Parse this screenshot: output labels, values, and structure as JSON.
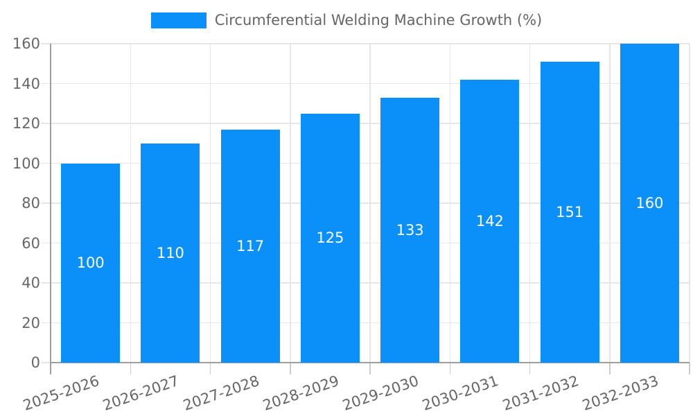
{
  "legend": {
    "label": "Circumferential Welding Machine Growth (%)"
  },
  "chart_data": {
    "type": "bar",
    "title": "",
    "xlabel": "",
    "ylabel": "",
    "categories": [
      "2025-2026",
      "2026-2027",
      "2027-2028",
      "2028-2029",
      "2029-2030",
      "2030-2031",
      "2031-2032",
      "2032-2033"
    ],
    "values": [
      100,
      110,
      117,
      125,
      133,
      142,
      151,
      160
    ],
    "series_name": "Circumferential Welding Machine Growth (%)",
    "yticks": [
      0,
      20,
      40,
      60,
      80,
      100,
      120,
      140,
      160
    ],
    "ylim": [
      0,
      160
    ],
    "grid": true,
    "legend_position": "top-center",
    "value_label_position": "inside-center",
    "colors": {
      "bar": "#0a90f8",
      "grid": "#e6e6e6",
      "axis": "#9e9e9e",
      "tick_mark": "#cccccc",
      "tick_label": "#666666",
      "legend_text": "#666666",
      "value_label": "#ffffff",
      "background": "#ffffff"
    }
  }
}
